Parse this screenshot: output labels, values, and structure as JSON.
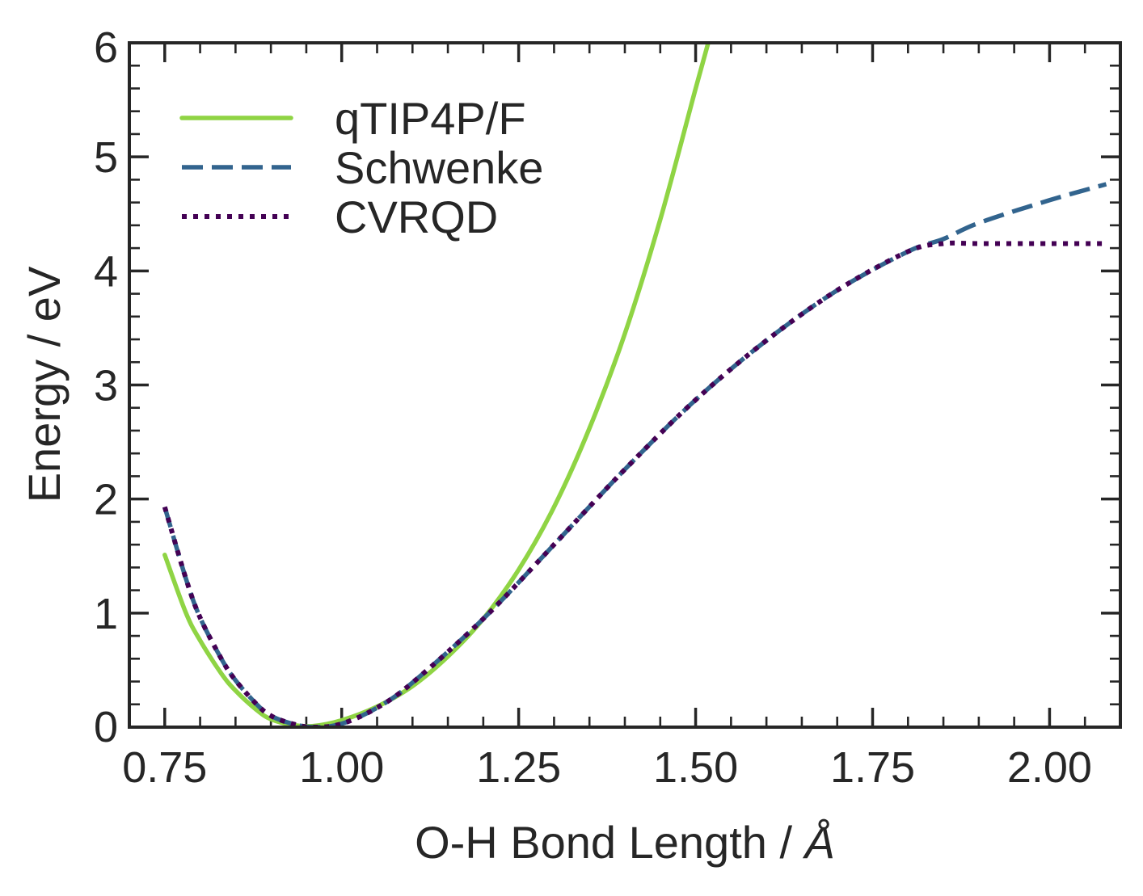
{
  "chart_data": {
    "type": "line",
    "xlabel_main": "O-H Bond Length / ",
    "xlabel_unit": "Å",
    "ylabel": "Energy / eV",
    "xlim": [
      0.7,
      2.1
    ],
    "ylim": [
      0,
      6
    ],
    "xticks": [
      0.75,
      1.0,
      1.25,
      1.5,
      1.75,
      2.0
    ],
    "xtick_labels": [
      "0.75",
      "1.00",
      "1.25",
      "1.50",
      "1.75",
      "2.00"
    ],
    "yticks": [
      0,
      1,
      2,
      3,
      4,
      5,
      6
    ],
    "ytick_labels": [
      "0",
      "1",
      "2",
      "3",
      "4",
      "5",
      "6"
    ],
    "grid": false,
    "legend_position": "top-left",
    "series": [
      {
        "name": "qTIP4P/F",
        "style": "solid",
        "color": "#8fd444",
        "x": [
          0.75,
          0.78,
          0.8,
          0.83,
          0.85,
          0.88,
          0.9,
          0.93,
          0.96,
          1.0,
          1.05,
          1.1,
          1.15,
          1.2,
          1.25,
          1.3,
          1.35,
          1.4,
          1.45,
          1.5,
          1.52
        ],
        "y": [
          1.51,
          1.0,
          0.76,
          0.47,
          0.32,
          0.15,
          0.07,
          0.02,
          0.01,
          0.06,
          0.18,
          0.36,
          0.62,
          0.95,
          1.38,
          1.93,
          2.62,
          3.45,
          4.45,
          5.6,
          6.05
        ]
      },
      {
        "name": "Schwenke",
        "style": "dashed",
        "color": "#32648e",
        "x": [
          0.75,
          0.78,
          0.8,
          0.83,
          0.85,
          0.88,
          0.9,
          0.93,
          0.96,
          1.0,
          1.05,
          1.1,
          1.2,
          1.3,
          1.4,
          1.5,
          1.6,
          1.7,
          1.8,
          1.85,
          1.9,
          2.0,
          2.08
        ],
        "y": [
          1.93,
          1.3,
          0.96,
          0.6,
          0.41,
          0.2,
          0.1,
          0.03,
          0.0,
          0.03,
          0.17,
          0.39,
          0.95,
          1.6,
          2.26,
          2.87,
          3.39,
          3.83,
          4.17,
          4.28,
          4.42,
          4.62,
          4.76
        ]
      },
      {
        "name": "CVRQD",
        "style": "dotted",
        "color": "#440154",
        "x": [
          0.75,
          0.78,
          0.8,
          0.83,
          0.85,
          0.88,
          0.9,
          0.93,
          0.96,
          1.0,
          1.05,
          1.1,
          1.2,
          1.3,
          1.4,
          1.5,
          1.6,
          1.7,
          1.8,
          1.85,
          1.9,
          2.0,
          2.08
        ],
        "y": [
          1.93,
          1.3,
          0.96,
          0.6,
          0.41,
          0.2,
          0.1,
          0.03,
          0.0,
          0.03,
          0.17,
          0.39,
          0.95,
          1.6,
          2.26,
          2.87,
          3.39,
          3.83,
          4.17,
          4.24,
          4.24,
          4.24,
          4.24
        ]
      }
    ]
  }
}
